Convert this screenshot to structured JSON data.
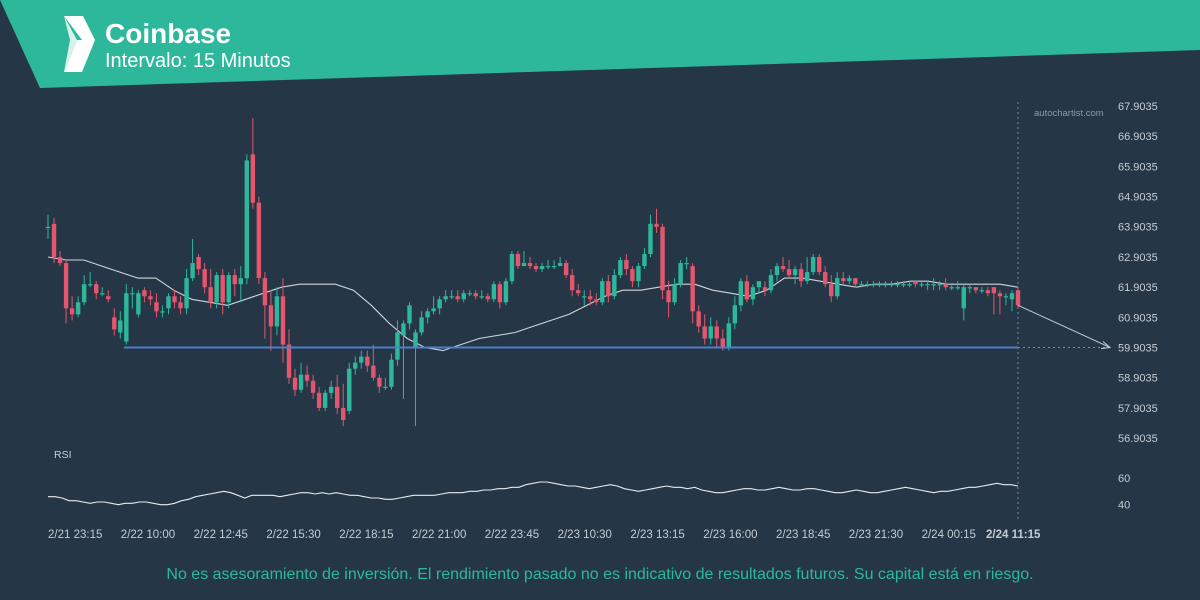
{
  "header": {
    "title": "Coinbase",
    "subtitle": "Intervalo: 15 Minutos",
    "brand_color": "#2db89b",
    "logo_icon": "chevron-logo-icon"
  },
  "watermark": "autochartist.com",
  "disclaimer": "No es asesoramiento de inversión. El rendimiento pasado no es indicativo de resultados futuros. Su capital está en riesgo.",
  "colors": {
    "background": "#253746",
    "up": "#2db89b",
    "down": "#e3566e",
    "support": "#4f7fc9",
    "moving_average": "#d0d5da"
  },
  "chart_data": {
    "type": "candlestick",
    "y_ticks": [
      "67.9035",
      "66.9035",
      "65.9035",
      "64.9035",
      "63.9035",
      "62.9035",
      "61.9035",
      "60.9035",
      "59.9035",
      "58.9035",
      "57.9035",
      "56.9035"
    ],
    "ylim": [
      56.9035,
      67.9035
    ],
    "x_ticks": [
      "2/21 23:15",
      "2/22 10:00",
      "2/22 12:45",
      "2/22 15:30",
      "2/22 18:15",
      "2/22 21:00",
      "2/22 23:45",
      "2/23 10:30",
      "2/23 13:15",
      "2/23 16:00",
      "2/23 18:45",
      "2/23 21:30",
      "2/24 00:15",
      "2/24 11:15"
    ],
    "current_time_label": "2/24 11:15",
    "support_level": 59.9035,
    "forecast_target": 59.9035,
    "grid": false,
    "candles": [
      [
        63.9,
        63.9,
        64.3,
        63.5
      ],
      [
        64.0,
        62.9,
        64.2,
        62.7
      ],
      [
        62.9,
        62.7,
        63.1,
        62.6
      ],
      [
        62.7,
        61.2,
        62.8,
        60.7
      ],
      [
        61.2,
        61.0,
        61.6,
        60.8
      ],
      [
        61.0,
        61.4,
        61.6,
        60.9
      ],
      [
        61.4,
        62.0,
        62.3,
        61.3
      ],
      [
        62.0,
        62.0,
        62.4,
        61.9
      ],
      [
        62.0,
        61.7,
        62.1,
        61.5
      ],
      [
        61.7,
        61.7,
        61.9,
        61.6
      ],
      [
        61.6,
        61.5,
        61.8,
        61.4
      ],
      [
        60.9,
        60.5,
        61.2,
        60.3
      ],
      [
        60.4,
        60.8,
        61.1,
        60.2
      ],
      [
        60.1,
        61.7,
        62.0,
        60.0
      ],
      [
        61.7,
        61.7,
        61.9,
        61.2
      ],
      [
        61.0,
        61.7,
        61.8,
        60.9
      ],
      [
        61.8,
        61.6,
        61.9,
        61.4
      ],
      [
        61.6,
        61.5,
        61.8,
        61.3
      ],
      [
        61.4,
        61.1,
        61.7,
        60.9
      ],
      [
        61.1,
        61.1,
        61.3,
        60.9
      ],
      [
        61.2,
        61.6,
        61.7,
        61.0
      ],
      [
        61.6,
        61.4,
        61.8,
        61.2
      ],
      [
        61.4,
        61.2,
        61.6,
        61.0
      ],
      [
        61.2,
        62.2,
        62.5,
        61.0
      ],
      [
        62.2,
        62.7,
        63.5,
        62.1
      ],
      [
        62.9,
        62.5,
        63.0,
        62.3
      ],
      [
        62.5,
        61.9,
        62.7,
        61.7
      ],
      [
        61.9,
        61.4,
        62.5,
        61.2
      ],
      [
        61.4,
        62.3,
        62.4,
        61.2
      ],
      [
        62.3,
        61.4,
        62.5,
        61.0
      ],
      [
        61.4,
        62.3,
        62.4,
        61.2
      ],
      [
        62.3,
        62.0,
        62.5,
        61.6
      ],
      [
        62.0,
        62.2,
        62.6,
        61.4
      ],
      [
        62.2,
        66.1,
        66.3,
        62.0
      ],
      [
        66.3,
        64.7,
        67.5,
        64.5
      ],
      [
        64.7,
        62.2,
        64.9,
        62.0
      ],
      [
        62.2,
        61.3,
        62.4,
        60.2
      ],
      [
        61.3,
        60.6,
        61.8,
        59.8
      ],
      [
        60.6,
        61.6,
        61.9,
        60.3
      ],
      [
        61.6,
        60.0,
        62.2,
        59.4
      ],
      [
        60.0,
        58.9,
        60.5,
        58.7
      ],
      [
        58.9,
        58.5,
        59.2,
        58.3
      ],
      [
        58.5,
        59.0,
        59.4,
        58.4
      ],
      [
        59.0,
        58.8,
        59.3,
        58.6
      ],
      [
        58.8,
        58.4,
        59.0,
        58.2
      ],
      [
        58.4,
        57.9,
        58.6,
        57.8
      ],
      [
        57.9,
        58.4,
        58.5,
        57.8
      ],
      [
        58.4,
        58.6,
        58.8,
        58.2
      ],
      [
        58.6,
        57.9,
        59.0,
        57.7
      ],
      [
        57.9,
        57.5,
        58.7,
        57.3
      ],
      [
        57.8,
        59.2,
        59.4,
        57.7
      ],
      [
        59.2,
        59.4,
        59.6,
        59.0
      ],
      [
        59.4,
        59.6,
        59.8,
        59.2
      ],
      [
        59.6,
        59.3,
        59.8,
        59.1
      ],
      [
        59.3,
        58.9,
        60.0,
        58.8
      ],
      [
        58.9,
        58.6,
        59.0,
        58.4
      ],
      [
        58.6,
        58.6,
        58.9,
        58.5
      ],
      [
        58.6,
        59.5,
        59.7,
        58.5
      ],
      [
        59.5,
        60.4,
        60.8,
        59.3
      ],
      [
        60.3,
        60.7,
        60.8,
        58.2
      ],
      [
        60.7,
        61.3,
        61.4,
        60.5
      ],
      [
        59.9,
        60.4,
        60.5,
        57.3
      ],
      [
        60.4,
        60.9,
        61.1,
        60.3
      ],
      [
        60.9,
        61.1,
        61.2,
        60.7
      ],
      [
        61.1,
        61.2,
        61.6,
        61.0
      ],
      [
        61.2,
        61.5,
        61.6,
        61.0
      ],
      [
        61.5,
        61.6,
        61.8,
        61.4
      ],
      [
        61.6,
        61.6,
        61.8,
        61.5
      ],
      [
        61.6,
        61.5,
        61.8,
        61.4
      ],
      [
        61.5,
        61.7,
        61.8,
        61.4
      ],
      [
        61.7,
        61.7,
        61.8,
        61.6
      ],
      [
        61.7,
        61.6,
        61.8,
        61.5
      ],
      [
        61.6,
        61.6,
        61.8,
        61.5
      ],
      [
        61.6,
        61.5,
        61.7,
        61.4
      ],
      [
        61.5,
        62.0,
        62.1,
        61.4
      ],
      [
        62.0,
        61.4,
        62.1,
        61.2
      ],
      [
        61.4,
        62.1,
        62.2,
        61.3
      ],
      [
        62.1,
        63.0,
        63.1,
        62.0
      ],
      [
        63.0,
        62.6,
        63.1,
        62.5
      ],
      [
        62.6,
        62.7,
        63.1,
        62.6
      ],
      [
        62.7,
        62.6,
        62.9,
        62.5
      ],
      [
        62.6,
        62.5,
        62.7,
        62.4
      ],
      [
        62.5,
        62.6,
        62.7,
        62.4
      ],
      [
        62.6,
        62.6,
        62.8,
        62.5
      ],
      [
        62.6,
        62.6,
        62.8,
        62.5
      ],
      [
        62.6,
        62.7,
        62.9,
        62.6
      ],
      [
        62.7,
        62.3,
        62.8,
        62.2
      ],
      [
        62.3,
        61.8,
        62.5,
        61.6
      ],
      [
        61.8,
        61.7,
        62.0,
        61.6
      ],
      [
        61.6,
        61.6,
        61.8,
        61.3
      ],
      [
        61.6,
        61.5,
        61.8,
        61.3
      ],
      [
        61.5,
        61.4,
        61.7,
        61.3
      ],
      [
        61.4,
        62.1,
        62.2,
        61.3
      ],
      [
        62.1,
        61.6,
        62.3,
        61.4
      ],
      [
        61.6,
        62.3,
        62.5,
        61.5
      ],
      [
        62.3,
        62.8,
        62.9,
        62.2
      ],
      [
        62.8,
        62.5,
        63.0,
        62.3
      ],
      [
        62.5,
        62.1,
        62.6,
        61.9
      ],
      [
        62.1,
        62.6,
        62.7,
        61.9
      ],
      [
        62.6,
        63.0,
        63.2,
        62.5
      ],
      [
        63.0,
        64.0,
        64.3,
        62.9
      ],
      [
        64.0,
        63.9,
        64.5,
        63.7
      ],
      [
        63.9,
        61.8,
        64.0,
        61.5
      ],
      [
        61.8,
        61.4,
        62.1,
        60.9
      ],
      [
        61.4,
        62.0,
        62.2,
        61.3
      ],
      [
        62.0,
        62.7,
        62.8,
        61.9
      ],
      [
        62.7,
        62.7,
        62.9,
        62.5
      ],
      [
        62.6,
        61.1,
        62.7,
        60.7
      ],
      [
        61.1,
        60.6,
        61.3,
        60.4
      ],
      [
        60.6,
        60.2,
        61.0,
        60.0
      ],
      [
        60.2,
        60.6,
        60.9,
        60.0
      ],
      [
        60.6,
        60.2,
        60.8,
        59.9
      ],
      [
        60.2,
        59.9,
        60.5,
        59.8
      ],
      [
        59.9,
        60.7,
        60.9,
        59.8
      ],
      [
        60.7,
        61.3,
        61.6,
        60.5
      ],
      [
        61.3,
        62.1,
        62.2,
        61.1
      ],
      [
        62.1,
        61.5,
        62.3,
        61.4
      ],
      [
        61.5,
        61.9,
        62.0,
        61.3
      ],
      [
        61.9,
        62.1,
        62.1,
        61.7
      ],
      [
        61.9,
        61.8,
        62.1,
        61.6
      ],
      [
        61.8,
        62.3,
        62.5,
        61.7
      ],
      [
        62.3,
        62.6,
        62.7,
        62.1
      ],
      [
        62.6,
        62.5,
        62.9,
        62.4
      ],
      [
        62.5,
        62.3,
        62.8,
        62.2
      ],
      [
        62.3,
        62.5,
        62.6,
        62.0
      ],
      [
        62.5,
        62.1,
        62.7,
        61.9
      ],
      [
        62.1,
        62.4,
        62.9,
        62.0
      ],
      [
        62.4,
        62.9,
        63.0,
        62.3
      ],
      [
        62.9,
        62.4,
        63.0,
        62.3
      ],
      [
        62.4,
        62.0,
        62.6,
        61.9
      ],
      [
        62.0,
        61.6,
        62.3,
        61.4
      ],
      [
        61.6,
        62.2,
        62.4,
        61.5
      ],
      [
        62.2,
        62.1,
        62.4,
        62.0
      ],
      [
        62.1,
        62.2,
        62.3,
        62.0
      ],
      [
        62.2,
        62.0,
        62.2,
        61.9
      ],
      [
        62.0,
        62.0,
        62.1,
        61.9
      ],
      [
        62.0,
        62.0,
        62.1,
        61.9
      ],
      [
        62.0,
        62.0,
        62.1,
        61.9
      ],
      [
        62.0,
        62.0,
        62.1,
        61.9
      ],
      [
        62.0,
        62.0,
        62.1,
        61.9
      ],
      [
        62.0,
        62.0,
        62.1,
        61.9
      ],
      [
        62.0,
        62.0,
        62.1,
        61.9
      ],
      [
        62.0,
        62.0,
        62.1,
        61.9
      ],
      [
        62.0,
        62.0,
        62.1,
        61.9
      ],
      [
        62.1,
        62.0,
        62.1,
        61.9
      ],
      [
        62.0,
        62.0,
        62.1,
        61.9
      ],
      [
        62.0,
        62.0,
        62.1,
        61.8
      ],
      [
        62.0,
        62.0,
        62.2,
        61.8
      ],
      [
        62.0,
        62.0,
        62.1,
        61.8
      ],
      [
        62.0,
        61.9,
        62.2,
        61.8
      ],
      [
        61.9,
        61.9,
        62.0,
        61.8
      ],
      [
        61.9,
        61.9,
        62.1,
        61.8
      ],
      [
        61.2,
        61.9,
        62.0,
        60.8
      ],
      [
        61.9,
        61.9,
        62.0,
        61.7
      ],
      [
        61.9,
        61.8,
        61.9,
        61.7
      ],
      [
        61.8,
        61.8,
        61.9,
        61.7
      ],
      [
        61.8,
        61.7,
        61.9,
        61.6
      ],
      [
        61.9,
        61.7,
        61.9,
        61.0
      ],
      [
        61.7,
        61.6,
        61.8,
        61.0
      ],
      [
        61.6,
        61.6,
        61.7,
        61.3
      ],
      [
        61.5,
        61.7,
        61.8,
        61.1
      ],
      [
        61.8,
        61.3,
        61.9,
        61.2
      ]
    ],
    "moving_average": [
      62.9,
      62.8,
      62.8,
      62.6,
      62.4,
      62.2,
      62.2,
      61.8,
      61.5,
      61.4,
      61.3,
      61.5,
      61.7,
      61.9,
      62.0,
      62.0,
      62.0,
      61.8,
      61.3,
      60.7,
      60.2,
      59.9,
      59.8,
      60.0,
      60.2,
      60.3,
      60.4,
      60.6,
      60.8,
      61.0,
      61.3,
      61.6,
      61.8,
      61.8,
      61.9,
      62.0,
      62.0,
      61.8,
      61.7,
      61.6,
      61.8,
      62.2,
      62.2,
      62.1,
      62.0,
      61.9,
      62.0,
      62.0,
      62.1,
      62.1,
      62.0,
      62.0,
      62.0,
      62.0,
      61.9
    ],
    "rsi": {
      "label": "RSI",
      "ticks": [
        "60",
        "40"
      ],
      "ylim": [
        30,
        72
      ],
      "values": [
        46,
        46,
        45,
        43,
        43,
        42,
        41,
        42,
        42,
        41,
        40,
        41,
        41,
        42,
        42,
        41,
        40,
        40,
        41,
        43,
        44,
        46,
        47,
        48,
        49,
        50,
        49,
        47,
        45,
        47,
        47,
        47,
        47,
        46,
        47,
        48,
        49,
        49,
        48,
        49,
        48,
        49,
        48,
        47,
        47,
        46,
        45,
        45,
        44,
        44,
        45,
        46,
        47,
        47,
        47,
        47,
        48,
        49,
        49,
        49,
        50,
        50,
        51,
        51,
        52,
        52,
        53,
        53,
        55,
        56,
        57,
        57,
        56,
        55,
        54,
        54,
        53,
        52,
        53,
        54,
        55,
        54,
        52,
        51,
        50,
        51,
        52,
        53,
        54,
        53,
        53,
        52,
        53,
        51,
        50,
        49,
        49,
        50,
        51,
        52,
        52,
        51,
        51,
        52,
        53,
        52,
        51,
        51,
        52,
        52,
        51,
        50,
        49,
        49,
        50,
        51,
        50,
        49,
        49,
        50,
        51,
        52,
        53,
        52,
        51,
        50,
        49,
        50,
        50,
        51,
        52,
        53,
        53,
        54,
        55,
        56,
        55,
        55,
        54
      ]
    }
  }
}
